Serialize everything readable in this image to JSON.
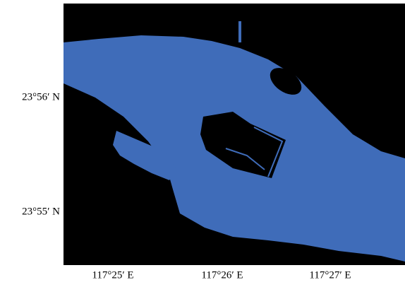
{
  "map": {
    "lat_labels": [
      "23°56′ N",
      "23°55′ N"
    ],
    "lon_labels": [
      "117°25′ E",
      "117°26′ E",
      "117°27′ E"
    ]
  }
}
